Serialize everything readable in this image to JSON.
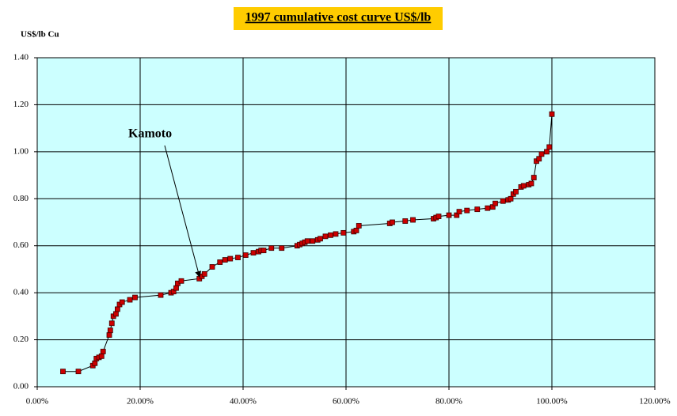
{
  "chart_data": {
    "type": "line",
    "title": "1997  cumulative cost curve US$/lb",
    "y_label": "US$/lb Cu",
    "annotation": "Kamoto",
    "x": [
      5,
      8,
      10.8,
      11.2,
      11.5,
      12,
      12.5,
      12.8,
      14,
      14.2,
      14.5,
      14.8,
      15.3,
      15.6,
      16,
      16.5,
      18,
      19,
      24,
      26,
      26.5,
      27,
      27.3,
      28,
      31.5,
      32,
      32.5,
      34,
      35.5,
      36.5,
      37.5,
      39,
      40.5,
      42,
      43,
      43.5,
      44,
      45.5,
      47.5,
      50.5,
      51,
      51.5,
      52,
      52.5,
      53.5,
      54.5,
      55,
      56,
      57,
      58,
      59.5,
      61.5,
      62,
      62.5,
      68.5,
      69,
      71.5,
      73,
      77,
      77.5,
      78,
      80,
      81.5,
      82,
      83.5,
      85.5,
      87.5,
      88.5,
      89,
      90.5,
      91.5,
      92,
      92.5,
      93,
      94,
      94.5,
      95.5,
      96,
      96.5,
      97,
      97.5,
      98,
      99,
      99.5,
      100
    ],
    "values": [
      0.065,
      0.065,
      0.09,
      0.1,
      0.12,
      0.125,
      0.13,
      0.15,
      0.22,
      0.24,
      0.27,
      0.3,
      0.31,
      0.33,
      0.35,
      0.36,
      0.37,
      0.38,
      0.39,
      0.4,
      0.405,
      0.42,
      0.44,
      0.45,
      0.46,
      0.47,
      0.48,
      0.51,
      0.53,
      0.54,
      0.545,
      0.55,
      0.56,
      0.57,
      0.575,
      0.58,
      0.58,
      0.59,
      0.59,
      0.6,
      0.605,
      0.61,
      0.615,
      0.62,
      0.62,
      0.625,
      0.63,
      0.64,
      0.645,
      0.65,
      0.655,
      0.66,
      0.665,
      0.685,
      0.695,
      0.7,
      0.705,
      0.71,
      0.715,
      0.72,
      0.725,
      0.73,
      0.73,
      0.745,
      0.75,
      0.755,
      0.76,
      0.765,
      0.78,
      0.79,
      0.795,
      0.8,
      0.82,
      0.83,
      0.85,
      0.855,
      0.86,
      0.865,
      0.89,
      0.96,
      0.97,
      0.99,
      1.0,
      1.02,
      1.16
    ],
    "color": "#cc0000",
    "line_color": "#000000",
    "plot_background": "#ccffff",
    "grid": true,
    "xlim": [
      0,
      120
    ],
    "xticks": [
      {
        "value": 0,
        "label": "0.00%"
      },
      {
        "value": 20,
        "label": "20.00%"
      },
      {
        "value": 40,
        "label": "40.00%"
      },
      {
        "value": 60,
        "label": "60.00%"
      },
      {
        "value": 80,
        "label": "80.00%"
      },
      {
        "value": 100,
        "label": "100.00%"
      },
      {
        "value": 120,
        "label": "120.00%"
      }
    ],
    "ylim": [
      0,
      1.4
    ],
    "yticks": [
      {
        "value": 0,
        "label": "0.00"
      },
      {
        "value": 0.2,
        "label": "0.20"
      },
      {
        "value": 0.4,
        "label": "0.40"
      },
      {
        "value": 0.6,
        "label": "0.60"
      },
      {
        "value": 0.8,
        "label": "0.80"
      },
      {
        "value": 1.0,
        "label": "1.00"
      },
      {
        "value": 1.2,
        "label": "1.20"
      },
      {
        "value": 1.4,
        "label": "1.40"
      }
    ]
  }
}
